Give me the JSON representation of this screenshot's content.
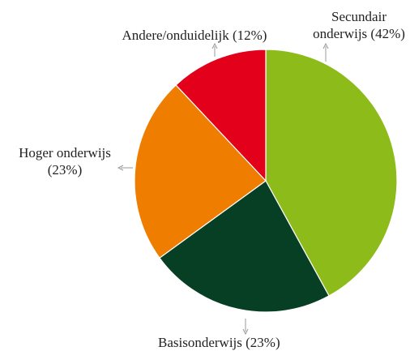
{
  "chart_data": {
    "type": "pie",
    "categories": [
      "Secundair onderwijs",
      "Basisonderwijs",
      "Hoger onderwijs",
      "Andere/onduidelijk"
    ],
    "values": [
      42,
      23,
      23,
      12
    ],
    "value_labels": [
      "(42%)",
      "(23%)",
      "(23%)",
      "(12%)"
    ],
    "colors": [
      "#8cbb1a",
      "#073f24",
      "#ef7d00",
      "#e2001a"
    ],
    "start_angle": 0,
    "direction": "clockwise"
  }
}
